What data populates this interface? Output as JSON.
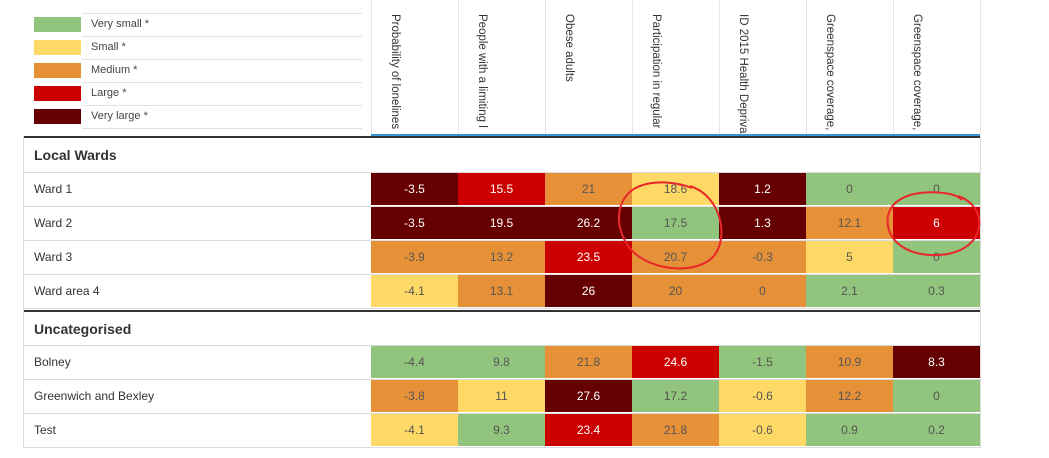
{
  "legend": [
    {
      "label": "Very small *",
      "color": "#91c47d"
    },
    {
      "label": "Small *",
      "color": "#ffd966"
    },
    {
      "label": "Medium *",
      "color": "#e69138"
    },
    {
      "label": "Large *",
      "color": "#cc0000"
    },
    {
      "label": "Very large *",
      "color": "#660000"
    }
  ],
  "columns": [
    "Probability of lonelines",
    "People with a limiting l",
    "Obese adults",
    "Participation in regular",
    "ID 2015 Health Depriva",
    "Greenspace coverage,",
    "Greenspace coverage,"
  ],
  "sections": [
    {
      "title": "Local Wards",
      "rows": [
        {
          "name": "Ward 1",
          "cells": [
            {
              "v": "-3.5",
              "c": 4
            },
            {
              "v": "15.5",
              "c": 3
            },
            {
              "v": "21",
              "c": 2
            },
            {
              "v": "18.6",
              "c": 1
            },
            {
              "v": "1.2",
              "c": 4
            },
            {
              "v": "0",
              "c": 0
            },
            {
              "v": "0",
              "c": 0
            }
          ]
        },
        {
          "name": "Ward 2",
          "cells": [
            {
              "v": "-3.5",
              "c": 4
            },
            {
              "v": "19.5",
              "c": 4
            },
            {
              "v": "26.2",
              "c": 4
            },
            {
              "v": "17.5",
              "c": 0
            },
            {
              "v": "1.3",
              "c": 4
            },
            {
              "v": "12.1",
              "c": 2
            },
            {
              "v": "6",
              "c": 3
            }
          ]
        },
        {
          "name": "Ward 3",
          "cells": [
            {
              "v": "-3.9",
              "c": 2
            },
            {
              "v": "13.2",
              "c": 2
            },
            {
              "v": "23.5",
              "c": 3
            },
            {
              "v": "20.7",
              "c": 2
            },
            {
              "v": "-0.3",
              "c": 2
            },
            {
              "v": "5",
              "c": 1
            },
            {
              "v": "0",
              "c": 0
            }
          ]
        },
        {
          "name": "Ward area 4",
          "cells": [
            {
              "v": "-4.1",
              "c": 1
            },
            {
              "v": "13.1",
              "c": 2
            },
            {
              "v": "26",
              "c": 4
            },
            {
              "v": "20",
              "c": 2
            },
            {
              "v": "0",
              "c": 2
            },
            {
              "v": "2.1",
              "c": 0
            },
            {
              "v": "0.3",
              "c": 0
            }
          ]
        }
      ]
    },
    {
      "title": "Uncategorised",
      "rows": [
        {
          "name": "Bolney",
          "cells": [
            {
              "v": "-4.4",
              "c": 0
            },
            {
              "v": "9.8",
              "c": 0
            },
            {
              "v": "21.8",
              "c": 2
            },
            {
              "v": "24.6",
              "c": 3
            },
            {
              "v": "-1.5",
              "c": 0
            },
            {
              "v": "10.9",
              "c": 2
            },
            {
              "v": "8.3",
              "c": 4
            }
          ]
        },
        {
          "name": "Greenwich and Bexley",
          "cells": [
            {
              "v": "-3.8",
              "c": 2
            },
            {
              "v": "11",
              "c": 1
            },
            {
              "v": "27.6",
              "c": 4
            },
            {
              "v": "17.2",
              "c": 0
            },
            {
              "v": "-0.6",
              "c": 1
            },
            {
              "v": "12.2",
              "c": 2
            },
            {
              "v": "0",
              "c": 0
            }
          ]
        },
        {
          "name": "Test",
          "cells": [
            {
              "v": "-4.1",
              "c": 1
            },
            {
              "v": "9.3",
              "c": 0
            },
            {
              "v": "23.4",
              "c": 3
            },
            {
              "v": "21.8",
              "c": 2
            },
            {
              "v": "-0.6",
              "c": 1
            },
            {
              "v": "0.9",
              "c": 0
            },
            {
              "v": "0.2",
              "c": 0
            }
          ]
        }
      ]
    }
  ],
  "annotation_color": "#e8272b"
}
